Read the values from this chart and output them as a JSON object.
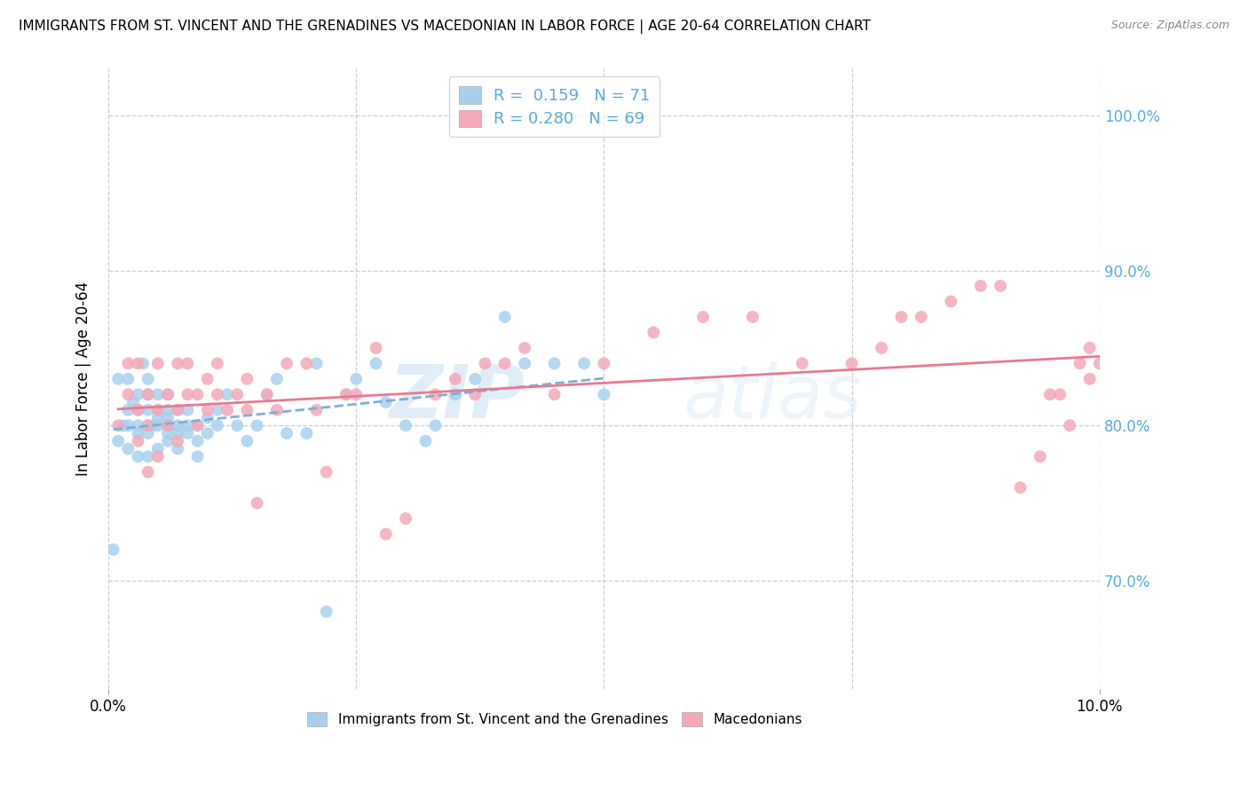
{
  "title": "IMMIGRANTS FROM ST. VINCENT AND THE GRENADINES VS MACEDONIAN IN LABOR FORCE | AGE 20-64 CORRELATION CHART",
  "source": "Source: ZipAtlas.com",
  "ylabel": "In Labor Force | Age 20-64",
  "ytick_vals": [
    0.7,
    0.8,
    0.9,
    1.0
  ],
  "xlim": [
    0.0,
    0.1
  ],
  "ylim": [
    0.63,
    1.03
  ],
  "color_blue": "#a8d0ee",
  "color_pink": "#f4a8b8",
  "color_blue_line": "#7ab0d8",
  "color_pink_line": "#e87a90",
  "color_blue_text": "#5aaadd",
  "color_right_axis": "#5aaadd",
  "blue_scatter_x": [
    0.0005,
    0.001,
    0.001,
    0.0015,
    0.002,
    0.002,
    0.002,
    0.002,
    0.0025,
    0.003,
    0.003,
    0.003,
    0.003,
    0.003,
    0.0035,
    0.004,
    0.004,
    0.004,
    0.004,
    0.004,
    0.004,
    0.0045,
    0.005,
    0.005,
    0.005,
    0.005,
    0.005,
    0.006,
    0.006,
    0.006,
    0.006,
    0.006,
    0.006,
    0.007,
    0.007,
    0.007,
    0.007,
    0.008,
    0.008,
    0.008,
    0.009,
    0.009,
    0.009,
    0.01,
    0.01,
    0.011,
    0.011,
    0.012,
    0.013,
    0.014,
    0.015,
    0.016,
    0.017,
    0.018,
    0.02,
    0.021,
    0.022,
    0.024,
    0.025,
    0.027,
    0.028,
    0.03,
    0.032,
    0.033,
    0.035,
    0.037,
    0.04,
    0.042,
    0.045,
    0.048,
    0.05
  ],
  "blue_scatter_y": [
    0.72,
    0.79,
    0.83,
    0.8,
    0.785,
    0.8,
    0.81,
    0.83,
    0.815,
    0.78,
    0.795,
    0.8,
    0.81,
    0.82,
    0.84,
    0.78,
    0.795,
    0.8,
    0.81,
    0.82,
    0.83,
    0.8,
    0.785,
    0.8,
    0.805,
    0.81,
    0.82,
    0.79,
    0.795,
    0.8,
    0.805,
    0.81,
    0.82,
    0.785,
    0.795,
    0.8,
    0.81,
    0.795,
    0.8,
    0.81,
    0.78,
    0.79,
    0.8,
    0.795,
    0.805,
    0.8,
    0.81,
    0.82,
    0.8,
    0.79,
    0.8,
    0.82,
    0.83,
    0.795,
    0.795,
    0.84,
    0.68,
    0.82,
    0.83,
    0.84,
    0.815,
    0.8,
    0.79,
    0.8,
    0.82,
    0.83,
    0.87,
    0.84,
    0.84,
    0.84,
    0.82
  ],
  "pink_scatter_x": [
    0.001,
    0.002,
    0.002,
    0.003,
    0.003,
    0.003,
    0.004,
    0.004,
    0.004,
    0.005,
    0.005,
    0.005,
    0.006,
    0.006,
    0.007,
    0.007,
    0.007,
    0.008,
    0.008,
    0.009,
    0.009,
    0.01,
    0.01,
    0.011,
    0.011,
    0.012,
    0.013,
    0.014,
    0.014,
    0.015,
    0.016,
    0.017,
    0.018,
    0.02,
    0.021,
    0.022,
    0.024,
    0.025,
    0.027,
    0.028,
    0.03,
    0.033,
    0.035,
    0.037,
    0.038,
    0.04,
    0.042,
    0.045,
    0.05,
    0.055,
    0.06,
    0.065,
    0.07,
    0.075,
    0.078,
    0.08,
    0.082,
    0.085,
    0.088,
    0.09,
    0.092,
    0.094,
    0.095,
    0.096,
    0.097,
    0.098,
    0.099,
    0.099,
    0.1
  ],
  "pink_scatter_y": [
    0.8,
    0.82,
    0.84,
    0.79,
    0.81,
    0.84,
    0.77,
    0.8,
    0.82,
    0.78,
    0.81,
    0.84,
    0.8,
    0.82,
    0.79,
    0.81,
    0.84,
    0.82,
    0.84,
    0.8,
    0.82,
    0.81,
    0.83,
    0.82,
    0.84,
    0.81,
    0.82,
    0.81,
    0.83,
    0.75,
    0.82,
    0.81,
    0.84,
    0.84,
    0.81,
    0.77,
    0.82,
    0.82,
    0.85,
    0.73,
    0.74,
    0.82,
    0.83,
    0.82,
    0.84,
    0.84,
    0.85,
    0.82,
    0.84,
    0.86,
    0.87,
    0.87,
    0.84,
    0.84,
    0.85,
    0.87,
    0.87,
    0.88,
    0.89,
    0.89,
    0.76,
    0.78,
    0.82,
    0.82,
    0.8,
    0.84,
    0.83,
    0.85,
    0.84
  ]
}
